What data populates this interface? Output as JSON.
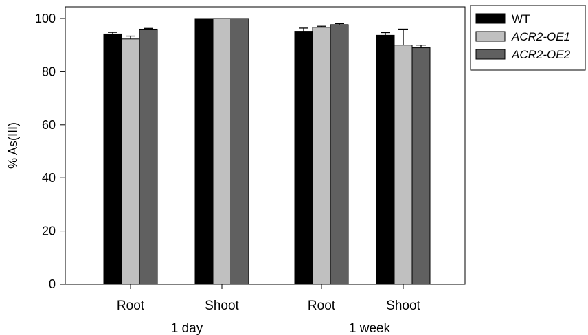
{
  "chart_data": {
    "type": "bar",
    "ylabel": "% As(III)",
    "ylim": [
      0,
      100
    ],
    "yticks": [
      0,
      20,
      40,
      60,
      80,
      100
    ],
    "grid": false,
    "legend_position": "top-right, outside plot area",
    "categories": [
      "Root",
      "Shoot",
      "Root",
      "Shoot"
    ],
    "groups": [
      {
        "label": "1 day",
        "categories": [
          "Root",
          "Shoot"
        ]
      },
      {
        "label": "1 week",
        "categories": [
          "Root",
          "Shoot"
        ]
      }
    ],
    "series": [
      {
        "name": "WT",
        "italic": false,
        "color": "#000000",
        "values": [
          94.2,
          100,
          95.2,
          93.7
        ],
        "errors": [
          0.6,
          0,
          1.2,
          1.0
        ]
      },
      {
        "name": "ACR2-OE1",
        "italic": true,
        "color": "#c0c0c0",
        "values": [
          92.3,
          100,
          96.7,
          90.0
        ],
        "errors": [
          1.1,
          0,
          0.4,
          6.0
        ]
      },
      {
        "name": "ACR2-OE2",
        "italic": true,
        "color": "#606060",
        "values": [
          96.0,
          100,
          97.7,
          89.0
        ],
        "errors": [
          0.3,
          0,
          0.4,
          1.0
        ]
      }
    ]
  }
}
